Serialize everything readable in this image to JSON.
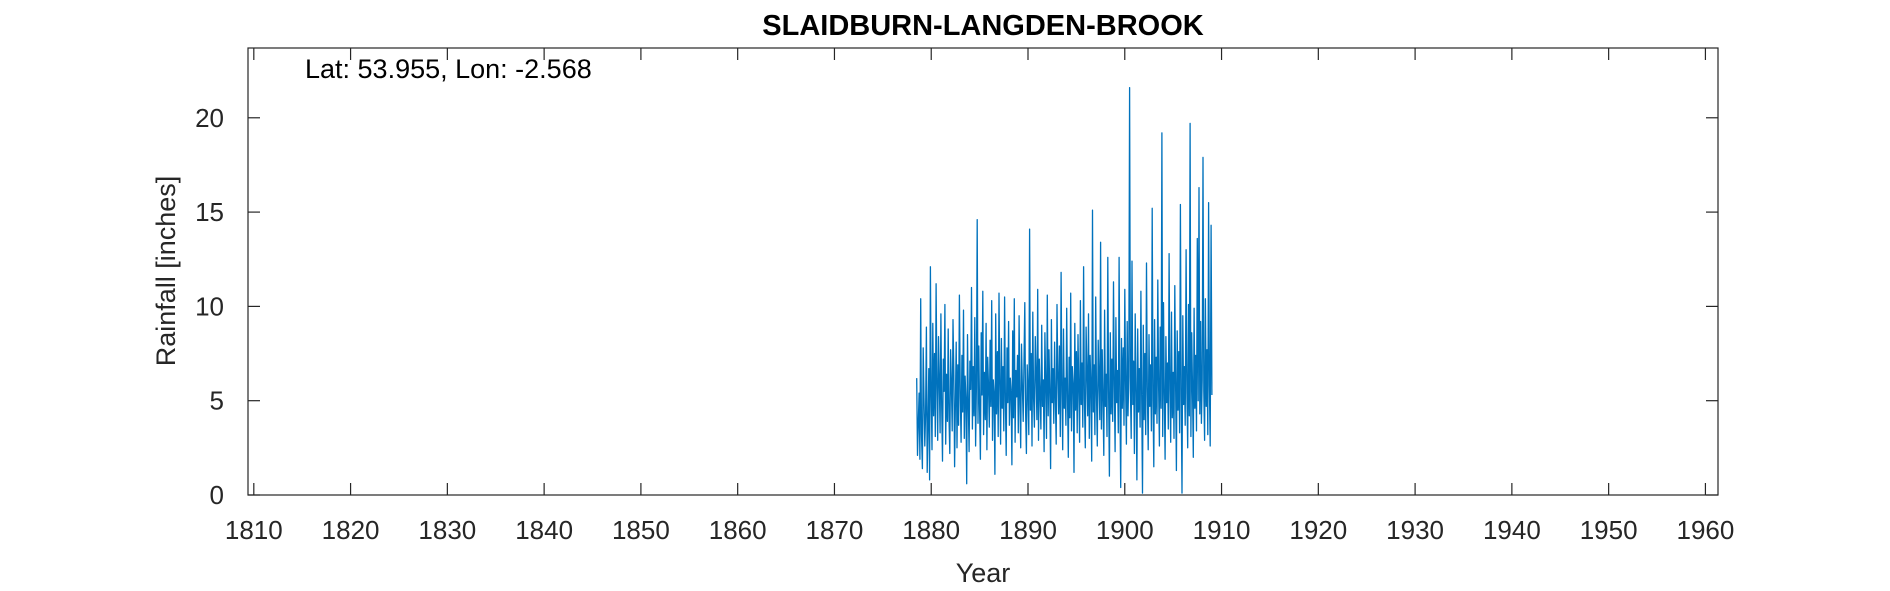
{
  "chart_data": {
    "type": "line",
    "title": "SLAIDBURN-LANGDEN-BROOK",
    "annotation": "Lat: 53.955, Lon: -2.568",
    "xlabel": "Year",
    "ylabel": "Rainfall [inches]",
    "xlim": [
      1809.4,
      1961.3
    ],
    "ylim": [
      0,
      23.7
    ],
    "xticks": [
      1810,
      1820,
      1830,
      1840,
      1850,
      1860,
      1870,
      1880,
      1890,
      1900,
      1910,
      1920,
      1930,
      1940,
      1950,
      1960
    ],
    "yticks": [
      0,
      5,
      10,
      15,
      20
    ],
    "grid": false,
    "series": [
      {
        "color": "#0072BD",
        "x_start": 1878.5,
        "x_step": 0.08333,
        "values": [
          6.2,
          2.1,
          3.8,
          5.4,
          1.9,
          10.4,
          3.2,
          1.4,
          7.8,
          5.1,
          2.6,
          4.3,
          8.9,
          1.2,
          3.6,
          6.7,
          0.8,
          12.1,
          5.3,
          2.4,
          9.1,
          4.2,
          7.5,
          3.1,
          11.2,
          5.8,
          2.9,
          8.4,
          6.1,
          3.3,
          9.6,
          4.7,
          1.8,
          7.2,
          5.5,
          10.1,
          2.7,
          6.4,
          3.9,
          8.8,
          4.1,
          2.2,
          7.7,
          5.9,
          3.4,
          9.3,
          6.6,
          1.5,
          4.8,
          8.1,
          2.5,
          6.9,
          3.7,
          10.6,
          5.2,
          2.8,
          7.4,
          4.4,
          9.8,
          3.0,
          6.3,
          5.1,
          0.6,
          8.5,
          4.9,
          2.3,
          7.1,
          5.6,
          11.0,
          3.5,
          6.8,
          4.2,
          9.4,
          2.6,
          5.7,
          14.6,
          3.8,
          7.9,
          4.5,
          1.9,
          8.6,
          5.3,
          10.8,
          3.2,
          6.5,
          4.0,
          9.1,
          2.4,
          7.3,
          5.8,
          3.6,
          8.2,
          4.7,
          10.3,
          2.9,
          6.1,
          5.4,
          1.1,
          9.6,
          4.3,
          7.6,
          3.1,
          10.7,
          5.9,
          2.7,
          8.3,
          4.6,
          6.8,
          3.4,
          10.5,
          5.0,
          2.1,
          7.8,
          4.9,
          9.2,
          3.7,
          6.2,
          5.5,
          1.6,
          8.7,
          4.1,
          10.4,
          2.8,
          6.6,
          5.2,
          7.4,
          3.3,
          9.5,
          4.8,
          2.5,
          8.0,
          5.7,
          3.9,
          7.1,
          10.2,
          4.4,
          2.2,
          6.9,
          5.6,
          3.2,
          14.1,
          4.5,
          7.5,
          2.6,
          9.7,
          5.1,
          3.6,
          8.4,
          6.3,
          4.0,
          10.9,
          2.9,
          7.2,
          5.3,
          3.5,
          9.0,
          4.7,
          6.1,
          2.3,
          8.6,
          5.8,
          3.0,
          10.6,
          4.2,
          7.7,
          5.4,
          1.4,
          9.3,
          4.9,
          6.7,
          3.8,
          8.1,
          5.0,
          2.7,
          10.1,
          6.4,
          4.3,
          7.9,
          3.1,
          11.8,
          5.5,
          2.4,
          8.8,
          4.6,
          6.2,
          3.7,
          9.9,
          5.2,
          2.0,
          7.3,
          4.1,
          10.7,
          3.4,
          6.8,
          5.9,
          1.2,
          9.1,
          4.5,
          7.6,
          3.3,
          8.5,
          5.6,
          2.8,
          10.3,
          4.8,
          7.0,
          3.6,
          12.1,
          5.1,
          2.5,
          8.9,
          6.5,
          4.2,
          9.6,
          3.0,
          7.4,
          5.7,
          1.8,
          15.1,
          4.4,
          6.9,
          3.2,
          10.5,
          5.3,
          2.6,
          8.2,
          6.1,
          4.0,
          13.4,
          3.5,
          7.7,
          5.0,
          2.1,
          9.8,
          4.7,
          6.4,
          3.1,
          12.6,
          5.5,
          1.0,
          8.6,
          4.3,
          7.2,
          3.9,
          11.3,
          5.8,
          2.3,
          9.4,
          4.9,
          6.6,
          3.3,
          12.6,
          5.2,
          0.4,
          8.3,
          4.6,
          7.8,
          3.7,
          10.9,
          5.9,
          2.7,
          9.2,
          4.2,
          6.3,
          21.6,
          5.6,
          3.0,
          12.4,
          4.8,
          7.1,
          2.2,
          9.6,
          5.4,
          0.8,
          8.8,
          4.4,
          6.7,
          3.6,
          10.8,
          5.1,
          0.1,
          9.0,
          4.0,
          7.5,
          3.2,
          12.3,
          5.7,
          2.4,
          8.5,
          4.7,
          6.9,
          3.4,
          15.2,
          5.0,
          1.5,
          9.3,
          4.3,
          7.3,
          3.8,
          11.4,
          5.8,
          2.6,
          8.9,
          4.6,
          19.2,
          3.1,
          10.2,
          5.3,
          1.9,
          8.4,
          4.9,
          7.0,
          3.5,
          12.8,
          5.6,
          2.8,
          9.7,
          4.1,
          6.5,
          3.0,
          11.1,
          5.9,
          1.3,
          8.7,
          4.5,
          7.6,
          3.3,
          15.4,
          5.2,
          0.1,
          9.5,
          4.8,
          6.8,
          3.7,
          13.0,
          5.4,
          2.5,
          10.1,
          4.2,
          19.7,
          3.1,
          8.6,
          5.7,
          2.0,
          9.9,
          4.6,
          7.4,
          3.4,
          13.6,
          5.0,
          16.3,
          4.3,
          9.2,
          3.8,
          6.1,
          17.9,
          5.5,
          2.9,
          10.4,
          4.7,
          7.7,
          3.2,
          15.5,
          5.8,
          2.6,
          14.3,
          5.3
        ]
      }
    ]
  }
}
